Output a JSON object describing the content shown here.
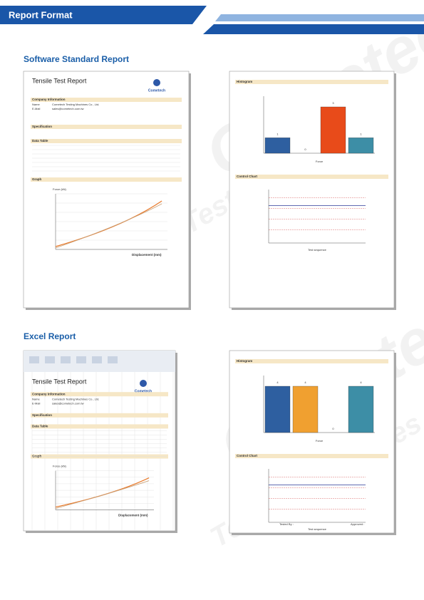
{
  "header": {
    "title": "Report Format"
  },
  "sections": [
    "Software Standard Report",
    "Excel Report"
  ],
  "watermark": {
    "brand": "Cometech",
    "tagline": "Testing Machines"
  },
  "software_report": {
    "title": "Tensile Test Report",
    "logo": "Cometech",
    "headings": [
      "Company Information",
      "Specification",
      "Data Table",
      "Graph"
    ],
    "company": [
      [
        "Name",
        "Cometech Testing Machines Co., Ltd."
      ],
      [
        "E-Mail",
        "sales@cometech.com.tw"
      ]
    ],
    "y_label": "Force (kN)",
    "x_label": "Displacement (mm)"
  },
  "software_charts": {
    "histogram_title": "Histogram",
    "histogram_counts": [
      1,
      0,
      3,
      1
    ],
    "histogram_x_label": "Force",
    "control_title": "Control Chart",
    "control_x_label": "Test sequence"
  },
  "excel_report": {
    "title": "Tensile Test Report",
    "logo": "Cometech",
    "headings": [
      "Company Information",
      "Specification",
      "Data Table",
      "Graph"
    ],
    "company": [
      [
        "Name",
        "Cometech Testing Machines Co., Ltd."
      ],
      [
        "E-Mail",
        "sales@cometech.com.tw"
      ]
    ],
    "y_label": "Force (kN)",
    "x_label": "Displacement (mm)"
  },
  "excel_charts": {
    "histogram_title": "Histogram",
    "histogram_counts": [
      4,
      4,
      0,
      4
    ],
    "histogram_x_label": "Force",
    "control_title": "Control Chart",
    "control_x_label": "Test sequence",
    "footer": [
      "Tested By :",
      "Approved :"
    ]
  }
}
